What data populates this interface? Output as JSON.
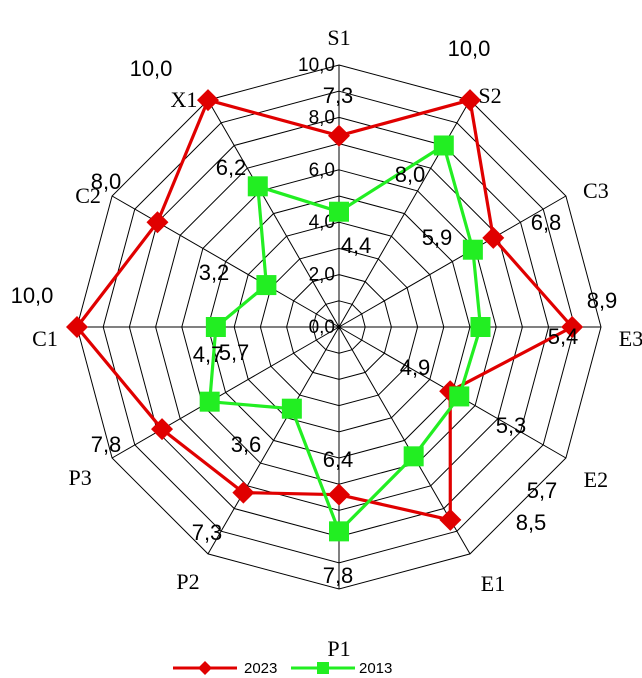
{
  "chart_data": {
    "type": "radar",
    "categories": [
      "S1",
      "S2",
      "C3",
      "E3",
      "E2",
      "E1",
      "P1",
      "P2",
      "P3",
      "C1",
      "C2",
      "X1"
    ],
    "series": [
      {
        "name": "2023",
        "color": "#e00000",
        "marker": "diamond",
        "values": [
          7.3,
          10.0,
          6.8,
          8.9,
          4.9,
          8.5,
          6.4,
          7.3,
          7.8,
          10.0,
          8.0,
          10.0
        ],
        "labels": [
          "7,3",
          "10,0",
          "6,8",
          "8,9",
          "4,9",
          "8,5",
          "6,4",
          "7,3",
          "7,8",
          "10,0",
          "8,0",
          "10,0"
        ]
      },
      {
        "name": "2013",
        "color": "#22ee22",
        "marker": "square",
        "values": [
          4.4,
          8.0,
          5.9,
          5.4,
          5.3,
          5.7,
          7.8,
          3.6,
          5.7,
          4.7,
          3.2,
          6.2
        ],
        "labels": [
          "4,4",
          "8,0",
          "5,9",
          "5,4",
          "5,3",
          "5,7",
          "7,8",
          "3,6",
          "5,7",
          "4,7",
          "3,2",
          "6,2"
        ]
      }
    ],
    "rlim": [
      0,
      10
    ],
    "rticks": [
      "0,0",
      "2,0",
      "4,0",
      "6,0",
      "8,0",
      "10,0"
    ],
    "grid": true,
    "legend_position": "bottom"
  }
}
